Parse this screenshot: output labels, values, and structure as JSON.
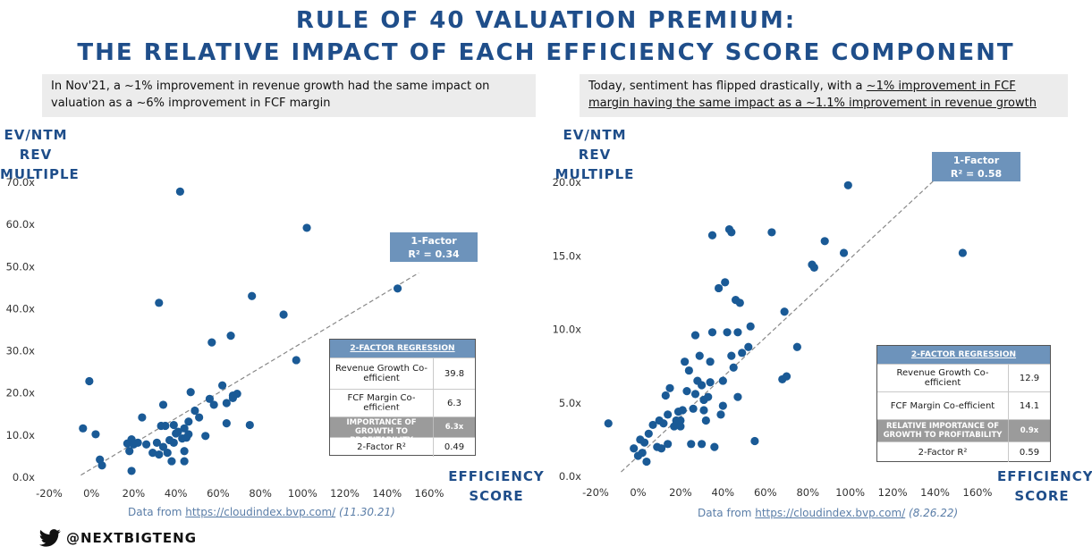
{
  "title": {
    "line1": "RULE OF 40 VALUATION PREMIUM:",
    "line2": "THE RELATIVE IMPACT OF EACH EFFICIENCY SCORE COMPONENT"
  },
  "left": {
    "callout": "In Nov'21, a ~1% improvement in revenue growth had the same impact on valuation as a ~6% improvement in FCF margin",
    "ylabel_line1": "EV/NTM REV",
    "ylabel_line2": "MULTIPLE",
    "xlabel_line1": "EFFICIENCY",
    "xlabel_line2": "SCORE",
    "source_prefix": "Data from ",
    "source_link": "https://cloudindex.bvp.com/",
    "source_date": "(11.30.21)",
    "factor_line1": "1-Factor",
    "factor_line2": "R² = 0.34",
    "regression": {
      "header": "2-FACTOR REGRESSION",
      "rows": [
        {
          "label": "Revenue Growth Co-efficient",
          "value": "39.8"
        },
        {
          "label": "FCF Margin Co-efficient",
          "value": "6.3"
        },
        {
          "label": "RELATIVE IMPORTANCE OF GROWTH TO PROFITABILITY",
          "value": "6.3x"
        },
        {
          "label": "2-Factor R²",
          "value": "0.49"
        }
      ]
    }
  },
  "right": {
    "callout_plain": "Today, sentiment has flipped drastically, with a ",
    "callout_underlined": "~1% improvement in FCF margin having the same impact as a ~1.1% improvement in revenue growth",
    "ylabel_line1": "EV/NTM REV",
    "ylabel_line2": "MULTIPLE",
    "xlabel_line1": "EFFICIENCY",
    "xlabel_line2": "SCORE",
    "source_prefix": "Data from ",
    "source_link": "https://cloudindex.bvp.com/",
    "source_date": "(8.26.22)",
    "factor_line1": "1-Factor",
    "factor_line2": "R² = 0.58",
    "regression": {
      "header": "2-FACTOR REGRESSION",
      "rows": [
        {
          "label": "Revenue Growth Co-efficient",
          "value": "12.9"
        },
        {
          "label": "FCF Margin Co-efficient",
          "value": "14.1"
        },
        {
          "label": "RELATIVE IMPORTANCE OF GROWTH TO PROFITABILITY",
          "value": "0.9x"
        },
        {
          "label": "2-Factor R²",
          "value": "0.59"
        }
      ]
    }
  },
  "handle": "@NEXTBIGTENG",
  "colors": {
    "point": "#1a5a96",
    "title": "#1f4e8a",
    "trend": "#888888"
  },
  "chart_data": [
    {
      "type": "scatter",
      "title": "",
      "xlabel": "EFFICIENCY SCORE",
      "ylabel": "EV/NTM REV MULTIPLE",
      "xlim": [
        -0.2,
        1.6
      ],
      "ylim": [
        0,
        70
      ],
      "x_ticks": [
        -0.2,
        0,
        0.2,
        0.4,
        0.6,
        0.8,
        1.0,
        1.2,
        1.4,
        1.6
      ],
      "x_tick_labels": [
        "-20%",
        "0%",
        "20%",
        "40%",
        "60%",
        "80%",
        "100%",
        "120%",
        "140%",
        "160%"
      ],
      "y_ticks": [
        0,
        10,
        20,
        30,
        40,
        50,
        60,
        70
      ],
      "y_tick_labels": [
        "0.0x",
        "10.0x",
        "20.0x",
        "30.0x",
        "40.0x",
        "50.0x",
        "60.0x",
        "70.0x"
      ],
      "trendline": {
        "x": [
          -0.05,
          1.55
        ],
        "y": [
          0.5,
          48.5
        ]
      },
      "points": [
        [
          -0.04,
          11.6
        ],
        [
          -0.01,
          22.8
        ],
        [
          0.02,
          10.2
        ],
        [
          0.04,
          4.2
        ],
        [
          0.05,
          2.8
        ],
        [
          0.17,
          8.0
        ],
        [
          0.18,
          6.2
        ],
        [
          0.19,
          9.0
        ],
        [
          0.2,
          7.8
        ],
        [
          0.22,
          8.2
        ],
        [
          0.24,
          14.2
        ],
        [
          0.26,
          7.8
        ],
        [
          0.19,
          1.5
        ],
        [
          0.29,
          5.8
        ],
        [
          0.31,
          8.2
        ],
        [
          0.32,
          5.4
        ],
        [
          0.32,
          41.4
        ],
        [
          0.33,
          12.2
        ],
        [
          0.34,
          17.2
        ],
        [
          0.34,
          7.2
        ],
        [
          0.35,
          12.2
        ],
        [
          0.36,
          5.8
        ],
        [
          0.37,
          8.8
        ],
        [
          0.38,
          3.8
        ],
        [
          0.39,
          12.4
        ],
        [
          0.39,
          8.2
        ],
        [
          0.4,
          10.4
        ],
        [
          0.41,
          10.8
        ],
        [
          0.42,
          67.8
        ],
        [
          0.43,
          9.2
        ],
        [
          0.44,
          11.6
        ],
        [
          0.44,
          6.2
        ],
        [
          0.44,
          3.8
        ],
        [
          0.45,
          9.4
        ],
        [
          0.46,
          13.2
        ],
        [
          0.46,
          10.2
        ],
        [
          0.47,
          20.2
        ],
        [
          0.49,
          15.8
        ],
        [
          0.51,
          14.2
        ],
        [
          0.54,
          9.8
        ],
        [
          0.56,
          18.6
        ],
        [
          0.57,
          32.0
        ],
        [
          0.58,
          17.2
        ],
        [
          0.62,
          21.8
        ],
        [
          0.64,
          17.6
        ],
        [
          0.64,
          12.8
        ],
        [
          0.66,
          33.6
        ],
        [
          0.67,
          19.4
        ],
        [
          0.67,
          18.8
        ],
        [
          0.69,
          19.8
        ],
        [
          0.75,
          12.4
        ],
        [
          0.76,
          43.0
        ],
        [
          0.91,
          38.6
        ],
        [
          0.97,
          27.8
        ],
        [
          1.02,
          59.2
        ],
        [
          1.45,
          44.8
        ]
      ]
    },
    {
      "type": "scatter",
      "title": "",
      "xlabel": "EFFICIENCY SCORE",
      "ylabel": "EV/NTM REV MULTIPLE",
      "xlim": [
        -0.2,
        1.6
      ],
      "ylim": [
        0,
        20
      ],
      "x_ticks": [
        -0.2,
        0,
        0.2,
        0.4,
        0.6,
        0.8,
        1.0,
        1.2,
        1.4,
        1.6
      ],
      "x_tick_labels": [
        "-20%",
        "0%",
        "20%",
        "40%",
        "60%",
        "80%",
        "100%",
        "120%",
        "140%",
        "160%"
      ],
      "y_ticks": [
        0,
        5,
        10,
        15,
        20
      ],
      "y_tick_labels": [
        "0.0x",
        "5.0x",
        "10.0x",
        "15.0x",
        "20.0x"
      ],
      "trendline": {
        "x": [
          -0.08,
          1.4
        ],
        "y": [
          0.3,
          20.2
        ]
      },
      "points": [
        [
          -0.14,
          3.6
        ],
        [
          -0.02,
          1.9
        ],
        [
          0.0,
          1.4
        ],
        [
          0.01,
          2.5
        ],
        [
          0.02,
          1.6
        ],
        [
          0.03,
          2.3
        ],
        [
          0.04,
          1.0
        ],
        [
          0.05,
          2.9
        ],
        [
          0.07,
          3.5
        ],
        [
          0.09,
          2.0
        ],
        [
          0.1,
          3.8
        ],
        [
          0.11,
          1.9
        ],
        [
          0.12,
          3.6
        ],
        [
          0.13,
          5.5
        ],
        [
          0.14,
          4.2
        ],
        [
          0.14,
          2.2
        ],
        [
          0.15,
          6.0
        ],
        [
          0.17,
          3.4
        ],
        [
          0.18,
          3.8
        ],
        [
          0.19,
          4.4
        ],
        [
          0.2,
          3.8
        ],
        [
          0.2,
          3.4
        ],
        [
          0.21,
          4.5
        ],
        [
          0.22,
          7.8
        ],
        [
          0.23,
          5.8
        ],
        [
          0.24,
          7.2
        ],
        [
          0.25,
          2.2
        ],
        [
          0.26,
          4.6
        ],
        [
          0.27,
          5.6
        ],
        [
          0.27,
          9.6
        ],
        [
          0.28,
          6.5
        ],
        [
          0.29,
          8.2
        ],
        [
          0.3,
          6.2
        ],
        [
          0.3,
          2.2
        ],
        [
          0.31,
          5.2
        ],
        [
          0.31,
          4.5
        ],
        [
          0.32,
          3.8
        ],
        [
          0.33,
          5.4
        ],
        [
          0.34,
          7.8
        ],
        [
          0.34,
          6.4
        ],
        [
          0.35,
          9.8
        ],
        [
          0.35,
          16.4
        ],
        [
          0.36,
          2.0
        ],
        [
          0.38,
          12.8
        ],
        [
          0.39,
          4.2
        ],
        [
          0.4,
          4.8
        ],
        [
          0.4,
          6.5
        ],
        [
          0.41,
          13.2
        ],
        [
          0.42,
          9.8
        ],
        [
          0.43,
          16.8
        ],
        [
          0.44,
          16.6
        ],
        [
          0.44,
          8.2
        ],
        [
          0.45,
          7.4
        ],
        [
          0.46,
          12.0
        ],
        [
          0.47,
          5.4
        ],
        [
          0.47,
          9.8
        ],
        [
          0.48,
          11.8
        ],
        [
          0.49,
          8.4
        ],
        [
          0.52,
          8.8
        ],
        [
          0.53,
          10.2
        ],
        [
          0.55,
          2.4
        ],
        [
          0.63,
          16.6
        ],
        [
          0.68,
          6.6
        ],
        [
          0.69,
          11.2
        ],
        [
          0.7,
          6.8
        ],
        [
          0.75,
          8.8
        ],
        [
          0.82,
          14.4
        ],
        [
          0.83,
          14.2
        ],
        [
          0.88,
          16.0
        ],
        [
          0.97,
          15.2
        ],
        [
          0.99,
          19.8
        ],
        [
          1.53,
          15.2
        ]
      ]
    }
  ]
}
